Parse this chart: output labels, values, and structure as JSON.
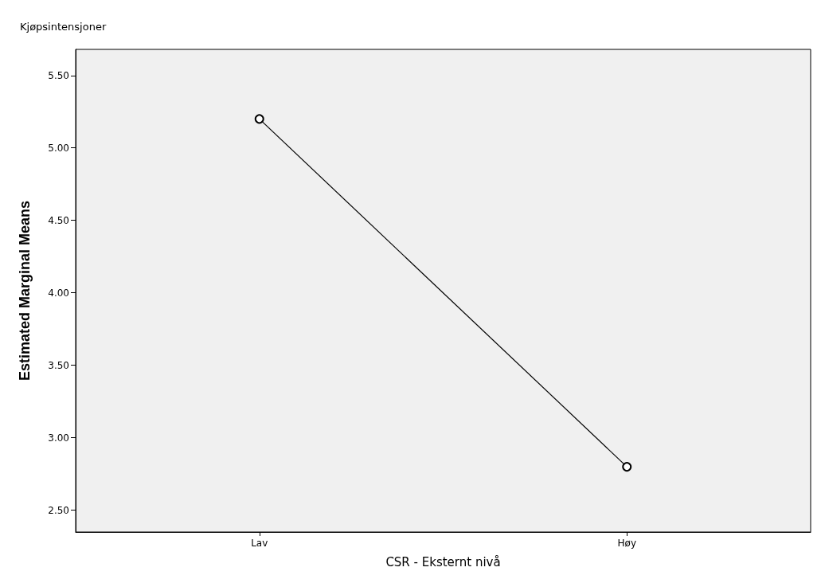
{
  "chart_data": {
    "type": "line",
    "title": "Kjøpsintensjoner",
    "xlabel": "CSR - Eksternt nivå",
    "ylabel": "Estimated Marginal Means",
    "categories": [
      "Lav",
      "Høy"
    ],
    "series": [
      {
        "color": "#000000",
        "values": [
          5.2,
          2.8
        ]
      }
    ],
    "ylim": [
      2.35,
      5.68
    ],
    "yticks": [
      {
        "value": 2.5,
        "label": "2.50"
      },
      {
        "value": 3,
        "label": "3.00"
      },
      {
        "value": 3.5,
        "label": "3.50"
      },
      {
        "value": 4,
        "label": "4.00"
      },
      {
        "value": 4.5,
        "label": "4.50"
      },
      {
        "value": 5,
        "label": "5.00"
      },
      {
        "value": 5.5,
        "label": "5.50"
      }
    ],
    "grid": false,
    "marker": "circle",
    "line_style": "solid"
  }
}
